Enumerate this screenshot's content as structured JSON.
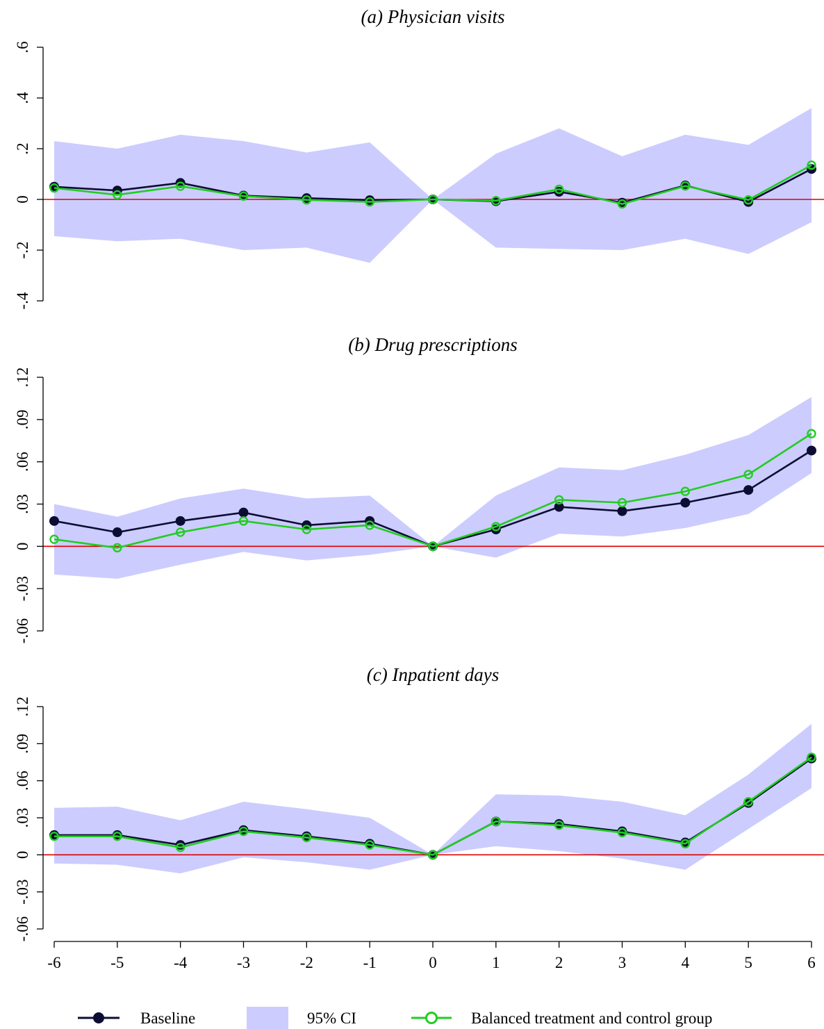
{
  "chart_data": [
    {
      "type": "line",
      "title": "(a) Physician visits",
      "xlabel": "",
      "ylabel": "",
      "x": [
        -6,
        -5,
        -4,
        -3,
        -2,
        -1,
        0,
        1,
        2,
        3,
        4,
        5,
        6
      ],
      "ylim": [
        -0.4,
        0.6
      ],
      "yticks": [
        -0.4,
        -0.2,
        0,
        0.2,
        0.4,
        0.6
      ],
      "yticklabels": [
        "-.4",
        "-.2",
        "0",
        ".2",
        ".4",
        ".6"
      ],
      "reference_line": 0,
      "series": [
        {
          "name": "Baseline",
          "values": [
            0.05,
            0.035,
            0.065,
            0.015,
            0.005,
            -0.003,
            0,
            -0.007,
            0.03,
            -0.013,
            0.055,
            -0.01,
            0.12
          ]
        },
        {
          "name": "Balanced treatment and control group",
          "values": [
            0.045,
            0.018,
            0.052,
            0.013,
            -0.002,
            -0.01,
            0,
            -0.005,
            0.04,
            -0.018,
            0.053,
            -0.002,
            0.135
          ]
        }
      ],
      "ci": {
        "name": "95% CI",
        "lower": [
          -0.145,
          -0.165,
          -0.155,
          -0.2,
          -0.19,
          -0.25,
          0,
          -0.19,
          -0.195,
          -0.2,
          -0.155,
          -0.215,
          -0.09
        ],
        "upper": [
          0.23,
          0.2,
          0.255,
          0.23,
          0.185,
          0.225,
          0,
          0.18,
          0.28,
          0.17,
          0.255,
          0.215,
          0.36
        ]
      }
    },
    {
      "type": "line",
      "title": "(b) Drug prescriptions",
      "xlabel": "",
      "ylabel": "",
      "x": [
        -6,
        -5,
        -4,
        -3,
        -2,
        -1,
        0,
        1,
        2,
        3,
        4,
        5,
        6
      ],
      "ylim": [
        -0.06,
        0.12
      ],
      "yticks": [
        -0.06,
        -0.03,
        0,
        0.03,
        0.06,
        0.09,
        0.12
      ],
      "yticklabels": [
        "-.06",
        "-.03",
        "0",
        ".03",
        ".06",
        ".09",
        ".12"
      ],
      "reference_line": 0,
      "series": [
        {
          "name": "Baseline",
          "values": [
            0.018,
            0.01,
            0.018,
            0.024,
            0.015,
            0.018,
            0,
            0.012,
            0.028,
            0.025,
            0.031,
            0.04,
            0.068
          ]
        },
        {
          "name": "Balanced treatment and control group",
          "values": [
            0.005,
            -0.001,
            0.01,
            0.018,
            0.012,
            0.015,
            0,
            0.014,
            0.033,
            0.031,
            0.039,
            0.051,
            0.08
          ]
        }
      ],
      "ci": {
        "name": "95% CI",
        "lower": [
          -0.02,
          -0.023,
          -0.013,
          -0.004,
          -0.01,
          -0.006,
          0,
          -0.008,
          0.009,
          0.007,
          0.013,
          0.023,
          0.052
        ],
        "upper": [
          0.03,
          0.021,
          0.034,
          0.041,
          0.034,
          0.036,
          0,
          0.036,
          0.056,
          0.054,
          0.065,
          0.079,
          0.106
        ]
      }
    },
    {
      "type": "line",
      "title": "(c) Inpatient days",
      "xlabel": "",
      "ylabel": "",
      "x": [
        -6,
        -5,
        -4,
        -3,
        -2,
        -1,
        0,
        1,
        2,
        3,
        4,
        5,
        6
      ],
      "xticklabels": [
        "-6",
        "-5",
        "-4",
        "-3",
        "-2",
        "-1",
        "0",
        "1",
        "2",
        "3",
        "4",
        "5",
        "6"
      ],
      "ylim": [
        -0.06,
        0.12
      ],
      "yticks": [
        -0.06,
        -0.03,
        0,
        0.03,
        0.06,
        0.09,
        0.12
      ],
      "yticklabels": [
        "-.06",
        "-.03",
        "0",
        ".03",
        ".06",
        ".09",
        ".12"
      ],
      "reference_line": 0,
      "series": [
        {
          "name": "Baseline",
          "values": [
            0.016,
            0.016,
            0.008,
            0.02,
            0.015,
            0.009,
            0,
            0.027,
            0.025,
            0.019,
            0.01,
            0.042,
            0.078
          ]
        },
        {
          "name": "Balanced treatment and control group",
          "values": [
            0.015,
            0.015,
            0.006,
            0.019,
            0.014,
            0.008,
            0,
            0.027,
            0.024,
            0.018,
            0.009,
            0.043,
            0.079
          ]
        }
      ],
      "ci": {
        "name": "95% CI",
        "lower": [
          -0.007,
          -0.008,
          -0.015,
          -0.002,
          -0.006,
          -0.012,
          0,
          0.007,
          0.003,
          -0.003,
          -0.012,
          0.021,
          0.054
        ],
        "upper": [
          0.038,
          0.039,
          0.028,
          0.043,
          0.037,
          0.03,
          0,
          0.049,
          0.048,
          0.043,
          0.032,
          0.065,
          0.106
        ]
      }
    }
  ],
  "legend": {
    "position": "bottom",
    "items": [
      {
        "label": "Baseline",
        "kind": "line-filled-marker"
      },
      {
        "label": "95% CI",
        "kind": "area"
      },
      {
        "label": "Balanced treatment and control group",
        "kind": "line-hollow-marker"
      }
    ]
  },
  "colors": {
    "baseline": "#0d0d33",
    "balanced": "#22cc22",
    "ci_fill": "#ccccff",
    "zero_line": "#dd0000",
    "axis": "#000000"
  }
}
